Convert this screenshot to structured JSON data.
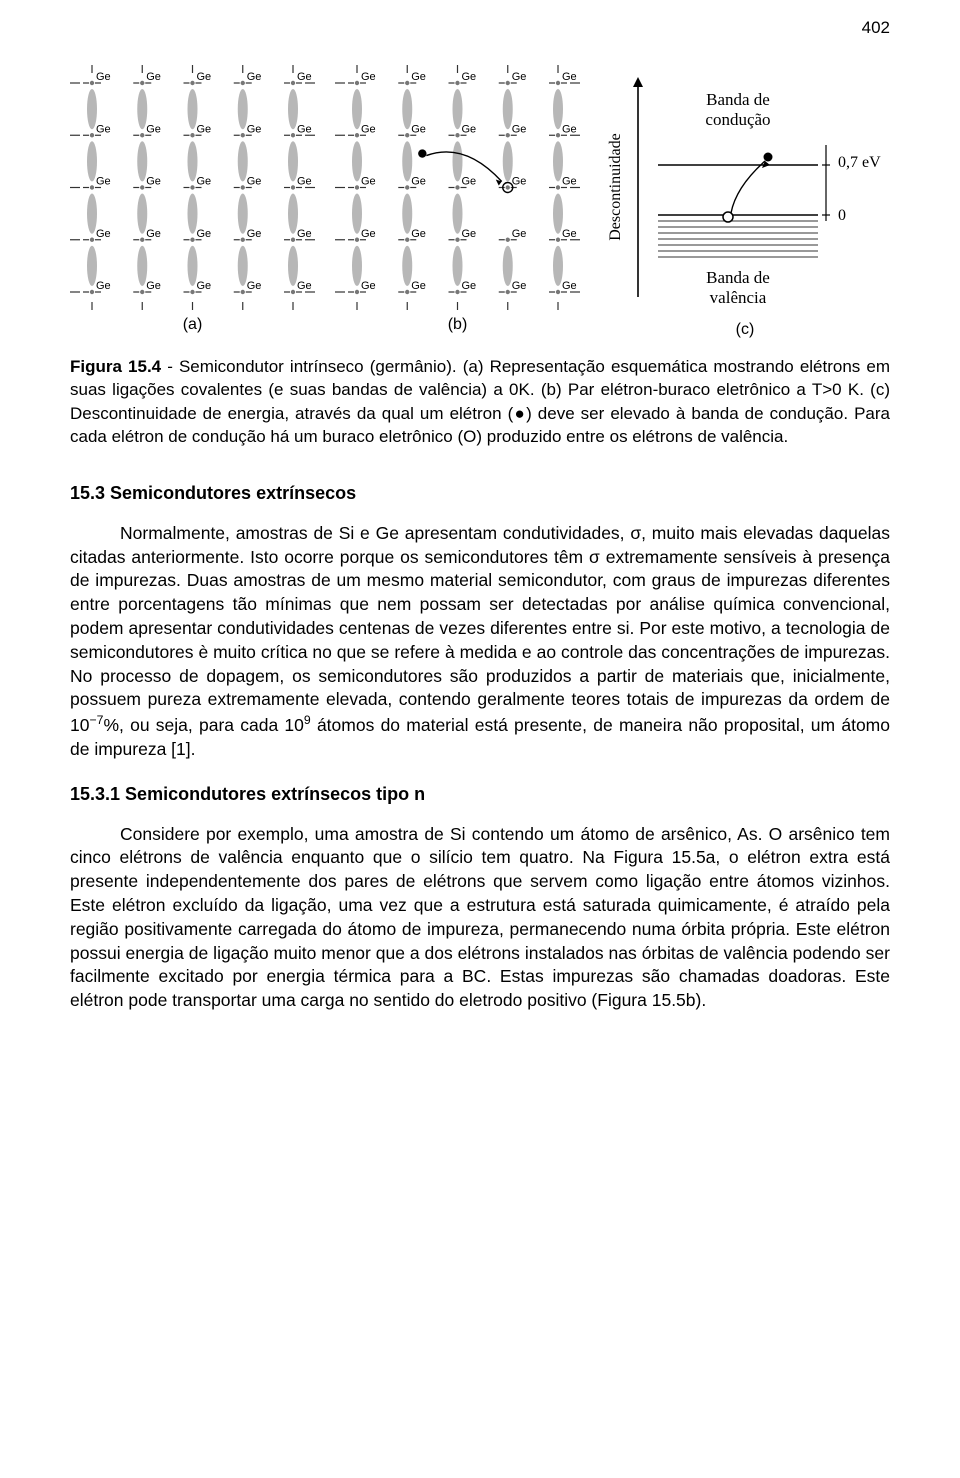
{
  "page_number": "402",
  "figure": {
    "lattice": {
      "atom_label": "Ge",
      "rows": 5,
      "cols": 5,
      "panel_a_label": "(a)",
      "panel_b_label": "(b)",
      "atom_color": "#777777",
      "bond_color": "#aaaaaa",
      "dash_color": "#333333",
      "electron_color": "#000000",
      "hole_stroke": "#000000"
    },
    "band": {
      "panel_c_label": "(c)",
      "y_axis_label": "Descontinuidade",
      "top_band_label": "Banda de\ncondução",
      "bottom_band_label": "Banda de\nvalência",
      "gap_label": "0,7 eV",
      "zero_label": "0",
      "line_color": "#000000",
      "hatch_color": "#333333"
    }
  },
  "caption": {
    "lead": "Figura 15.4",
    "text_a": " - Semicondutor intrínseco (germânio). (a) Representação esquemática mostrando elétrons em suas ligações covalentes (e suas bandas de valência) a 0K.",
    "text_b": "(b) Par elétron-buraco eletrônico a T>0 K. (c) Descontinuidade de energia, através da qual um elétron (●) deve ser elevado à banda de condução. Para cada elétron de condução há um buraco eletrônico (O) produzido entre os elétrons de valência."
  },
  "section_heading": "15.3 Semicondutores extrínsecos",
  "paragraph1": "Normalmente, amostras de Si e Ge apresentam condutividades, σ, muito mais elevadas daquelas citadas anteriormente. Isto ocorre porque os semicondutores têm σ extremamente sensíveis à presença de impurezas. Duas amostras de um mesmo material semicondutor, com graus de impurezas diferentes entre porcentagens tão mínimas que nem possam ser detectadas por análise química convencional, podem apresentar condutividades centenas de vezes diferentes entre si. Por este motivo, a tecnologia de semicondutores è muito crítica no que se refere à medida e ao controle das concentrações de impurezas. No processo de dopagem, os semicondutores são produzidos a partir de materiais que, inicialmente, possuem pureza extremamente elevada, contendo geralmente teores totais de impurezas da ordem de 10⁻⁷%, ou seja, para cada 10⁹ átomos do material está presente, de maneira não proposital, um átomo de impureza [1].",
  "subsection_heading": "15.3.1 Semicondutores extrínsecos tipo n",
  "paragraph2": "Considere por exemplo, uma amostra de Si contendo um átomo de arsênico, As. O arsênico tem cinco elétrons de valência enquanto que o silício tem quatro. Na Figura 15.5a, o elétron extra está presente independentemente dos pares de elétrons que servem como ligação entre átomos vizinhos. Este elétron excluído da ligação, uma vez que a estrutura está saturada quimicamente, é atraído pela região positivamente carregada do átomo de impureza, permanecendo numa órbita própria. Este elétron possui energia de ligação muito menor que a dos elétrons instalados nas órbitas de valência podendo ser facilmente excitado por energia térmica para a BC. Estas impurezas são chamadas doadoras. Este elétron pode transportar uma carga no sentido do eletrodo positivo (Figura 15.5b)."
}
